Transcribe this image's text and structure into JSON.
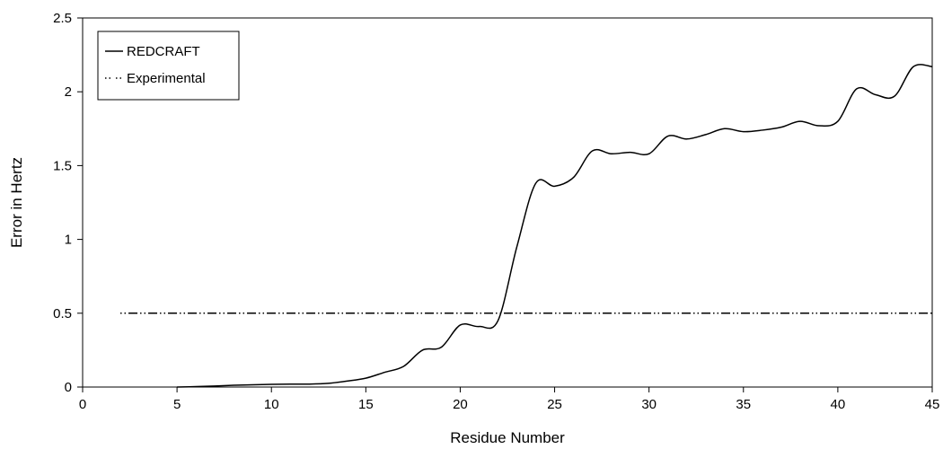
{
  "chart_data": {
    "type": "line",
    "xlabel": "Residue Number",
    "ylabel": "Error in Hertz",
    "xlim": [
      0,
      45
    ],
    "ylim": [
      0,
      2.5
    ],
    "xticks": [
      0,
      5,
      10,
      15,
      20,
      25,
      30,
      35,
      40,
      45
    ],
    "yticks": [
      0,
      0.5,
      1,
      1.5,
      2,
      2.5
    ],
    "xtick_labels": [
      "0",
      "5",
      "10",
      "15",
      "20",
      "25",
      "30",
      "35",
      "40",
      "45"
    ],
    "ytick_labels": [
      "0",
      "0.5",
      "1",
      "1.5",
      "2",
      "2.5"
    ],
    "grid": false,
    "legend_position": "top-left",
    "series": [
      {
        "name": "REDCRAFT",
        "style": "solid",
        "color": "#000000",
        "x": [
          5,
          6,
          7,
          8,
          9,
          10,
          11,
          12,
          13,
          14,
          15,
          16,
          17,
          18,
          19,
          20,
          21,
          22,
          23,
          24,
          25,
          26,
          27,
          28,
          29,
          30,
          31,
          32,
          33,
          34,
          35,
          36,
          37,
          38,
          39,
          40,
          41,
          42,
          43,
          44,
          45
        ],
        "y": [
          0.0,
          0.003,
          0.007,
          0.012,
          0.015,
          0.018,
          0.02,
          0.02,
          0.025,
          0.04,
          0.06,
          0.1,
          0.14,
          0.25,
          0.27,
          0.42,
          0.41,
          0.45,
          0.95,
          1.38,
          1.36,
          1.42,
          1.6,
          1.58,
          1.59,
          1.58,
          1.7,
          1.68,
          1.71,
          1.75,
          1.73,
          1.74,
          1.76,
          1.8,
          1.77,
          1.8,
          2.02,
          1.98,
          1.97,
          2.17,
          2.17
        ]
      },
      {
        "name": "Experimental",
        "style": "dash-dot",
        "color": "#000000",
        "x": [
          2,
          45
        ],
        "y": [
          0.5,
          0.5
        ]
      }
    ]
  }
}
